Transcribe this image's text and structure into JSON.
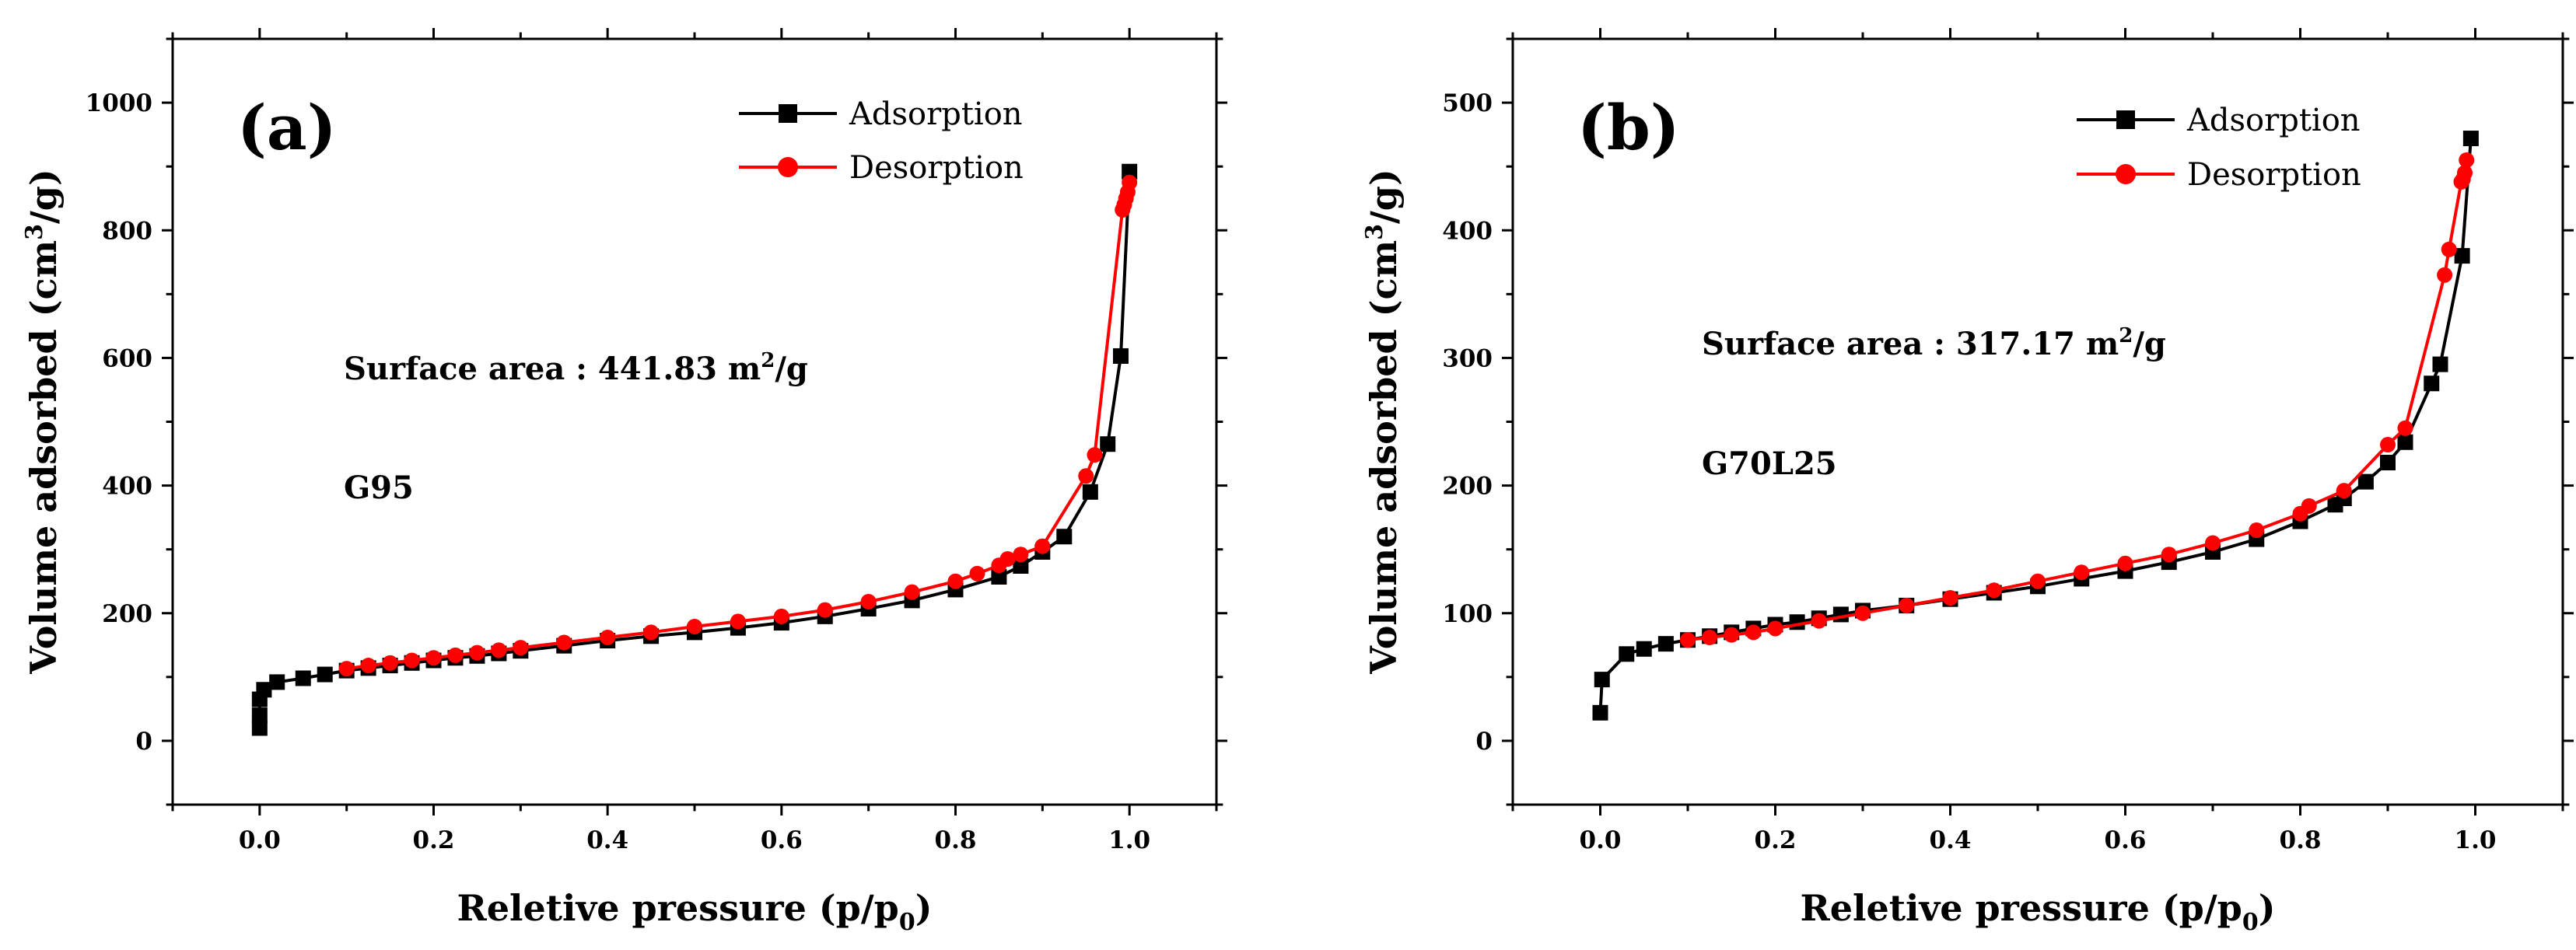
{
  "chart_data": [
    {
      "type": "line",
      "panel_label": "(a)",
      "xlabel": {
        "main": "Reletive pressure (p/p",
        "sub": "0",
        "tail": ")"
      },
      "ylabel": {
        "main": "Volume adsorbed (cm",
        "sup": "3",
        "tail": "/g)"
      },
      "xlim": [
        -0.1,
        1.1
      ],
      "ylim": [
        -100,
        1100
      ],
      "x_ticks": [
        0.0,
        0.2,
        0.4,
        0.6,
        0.8,
        1.0
      ],
      "x_tick_labels": [
        "0.0",
        "0.2",
        "0.4",
        "0.6",
        "0.8",
        "1.0"
      ],
      "y_ticks": [
        0,
        200,
        400,
        600,
        800,
        1000
      ],
      "y_tick_labels": [
        "0",
        "200",
        "400",
        "600",
        "800",
        "1000"
      ],
      "grid": false,
      "legend": "top-right",
      "annotations": {
        "surface_main": "Surface area : 441.83 m",
        "surface_sup": "2",
        "surface_tail": "/g",
        "sample": "G95"
      },
      "series": [
        {
          "name": "Adsorption",
          "color": "#000000",
          "marker": "square",
          "x": [
            0.0,
            0.0,
            0.0,
            0.005,
            0.02,
            0.05,
            0.075,
            0.1,
            0.125,
            0.15,
            0.175,
            0.2,
            0.225,
            0.25,
            0.275,
            0.3,
            0.35,
            0.4,
            0.45,
            0.5,
            0.55,
            0.6,
            0.65,
            0.7,
            0.75,
            0.8,
            0.85,
            0.875,
            0.9,
            0.925,
            0.955,
            0.975,
            0.99,
            1.0
          ],
          "y": [
            20,
            40,
            65,
            80,
            92,
            98,
            104,
            110,
            114,
            118,
            122,
            126,
            130,
            133,
            137,
            141,
            149,
            157,
            164,
            170,
            177,
            185,
            195,
            207,
            220,
            237,
            257,
            274,
            296,
            320,
            390,
            465,
            603,
            892
          ]
        },
        {
          "name": "Desorption",
          "color": "#ff0000",
          "marker": "circle",
          "x": [
            1.0,
            0.998,
            0.996,
            0.994,
            0.992,
            0.96,
            0.95,
            0.9,
            0.875,
            0.86,
            0.85,
            0.825,
            0.8,
            0.75,
            0.7,
            0.65,
            0.6,
            0.55,
            0.5,
            0.45,
            0.4,
            0.35,
            0.3,
            0.275,
            0.25,
            0.225,
            0.2,
            0.175,
            0.15,
            0.125,
            0.1
          ],
          "y": [
            875,
            860,
            850,
            840,
            832,
            448,
            415,
            305,
            292,
            285,
            275,
            262,
            250,
            233,
            218,
            205,
            195,
            187,
            179,
            170,
            162,
            154,
            146,
            142,
            138,
            134,
            130,
            126,
            122,
            118,
            113
          ]
        }
      ]
    },
    {
      "type": "line",
      "panel_label": "(b)",
      "xlabel": {
        "main": "Reletive pressure (p/p",
        "sub": "0",
        "tail": ")"
      },
      "ylabel": {
        "main": "Volume adsorbed (cm",
        "sup": "3",
        "tail": "/g)"
      },
      "xlim": [
        -0.1,
        1.1
      ],
      "ylim": [
        -50,
        550
      ],
      "x_ticks": [
        0.0,
        0.2,
        0.4,
        0.6,
        0.8,
        1.0
      ],
      "x_tick_labels": [
        "0.0",
        "0.2",
        "0.4",
        "0.6",
        "0.8",
        "1.0"
      ],
      "y_ticks": [
        0,
        100,
        200,
        300,
        400,
        500
      ],
      "y_tick_labels": [
        "0",
        "100",
        "200",
        "300",
        "400",
        "500"
      ],
      "grid": false,
      "legend": "top-right",
      "annotations": {
        "surface_main": "Surface area : 317.17 m",
        "surface_sup": "2",
        "surface_tail": "/g",
        "sample": "G70L25"
      },
      "series": [
        {
          "name": "Adsorption",
          "color": "#000000",
          "marker": "square",
          "x": [
            0.0,
            0.002,
            0.03,
            0.05,
            0.075,
            0.1,
            0.125,
            0.15,
            0.175,
            0.2,
            0.225,
            0.25,
            0.275,
            0.3,
            0.35,
            0.4,
            0.45,
            0.5,
            0.55,
            0.6,
            0.65,
            0.7,
            0.75,
            0.8,
            0.84,
            0.85,
            0.875,
            0.9,
            0.92,
            0.95,
            0.96,
            0.985,
            0.995
          ],
          "y": [
            22,
            48,
            68,
            72,
            76,
            79,
            82,
            85,
            88,
            91,
            93,
            96,
            99,
            102,
            106,
            111,
            116,
            121,
            127,
            133,
            140,
            148,
            158,
            172,
            185,
            190,
            203,
            218,
            234,
            280,
            295,
            380,
            472
          ]
        },
        {
          "name": "Desorption",
          "color": "#ff0000",
          "marker": "circle",
          "x": [
            0.99,
            0.988,
            0.986,
            0.984,
            0.97,
            0.965,
            0.92,
            0.9,
            0.85,
            0.81,
            0.8,
            0.75,
            0.7,
            0.65,
            0.6,
            0.55,
            0.5,
            0.45,
            0.4,
            0.35,
            0.3,
            0.25,
            0.2,
            0.175,
            0.15,
            0.125,
            0.1
          ],
          "y": [
            455,
            445,
            440,
            438,
            385,
            365,
            245,
            232,
            196,
            184,
            178,
            165,
            155,
            146,
            139,
            132,
            125,
            118,
            112,
            106,
            100,
            94,
            88,
            85,
            83,
            81,
            79
          ]
        }
      ]
    }
  ]
}
